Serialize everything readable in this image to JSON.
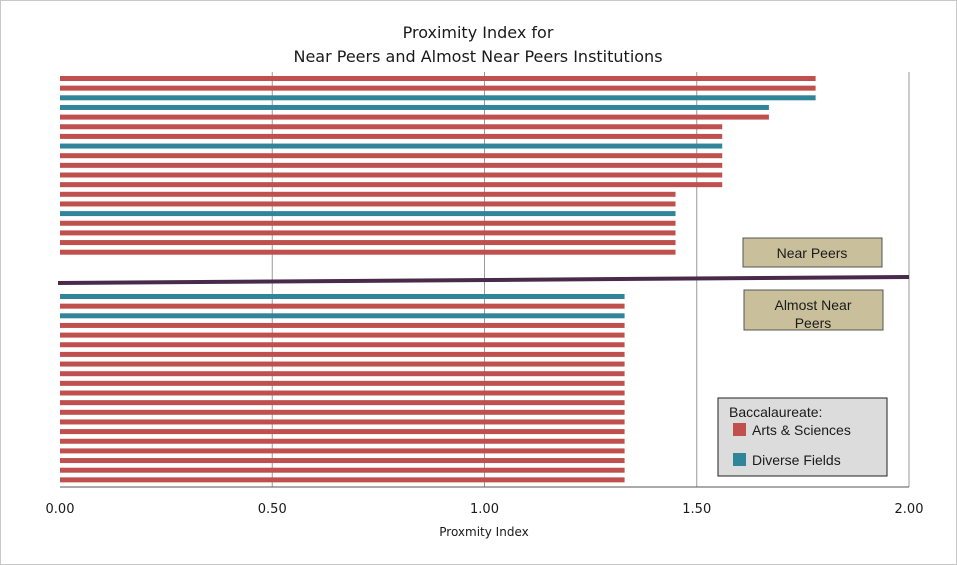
{
  "chart_data": {
    "type": "bar",
    "orientation": "horizontal",
    "title_lines": [
      "Proximity Index for",
      "Near Peers and Almost Near Peers Institutions"
    ],
    "xlabel": "Proxmity Index",
    "ylabel": "",
    "xlim": [
      0,
      2
    ],
    "xticks": [
      "0.00",
      "0.50",
      "1.00",
      "1.50",
      "2.00"
    ],
    "xtick_values": [
      0,
      0.5,
      1,
      1.5,
      2
    ],
    "grid": "vertical",
    "colors": {
      "arts": "#c0504d",
      "diverse": "#31859b",
      "divider": "#4a2a4a",
      "annotation_fill": "#c9bf9a",
      "legend_fill": "#dcdcdc"
    },
    "groups": [
      {
        "label": "Near Peers",
        "bars": [
          {
            "value": 1.78,
            "type": "arts"
          },
          {
            "value": 1.78,
            "type": "arts"
          },
          {
            "value": 1.78,
            "type": "diverse"
          },
          {
            "value": 1.67,
            "type": "diverse"
          },
          {
            "value": 1.67,
            "type": "arts"
          },
          {
            "value": 1.56,
            "type": "arts"
          },
          {
            "value": 1.56,
            "type": "arts"
          },
          {
            "value": 1.56,
            "type": "diverse"
          },
          {
            "value": 1.56,
            "type": "arts"
          },
          {
            "value": 1.56,
            "type": "arts"
          },
          {
            "value": 1.56,
            "type": "arts"
          },
          {
            "value": 1.56,
            "type": "arts"
          },
          {
            "value": 1.45,
            "type": "arts"
          },
          {
            "value": 1.45,
            "type": "arts"
          },
          {
            "value": 1.45,
            "type": "diverse"
          },
          {
            "value": 1.45,
            "type": "arts"
          },
          {
            "value": 1.45,
            "type": "arts"
          },
          {
            "value": 1.45,
            "type": "arts"
          },
          {
            "value": 1.45,
            "type": "arts"
          }
        ]
      },
      {
        "label": "Almost Near Peers",
        "bars": [
          {
            "value": 1.33,
            "type": "diverse"
          },
          {
            "value": 1.33,
            "type": "arts"
          },
          {
            "value": 1.33,
            "type": "diverse"
          },
          {
            "value": 1.33,
            "type": "arts"
          },
          {
            "value": 1.33,
            "type": "arts"
          },
          {
            "value": 1.33,
            "type": "arts"
          },
          {
            "value": 1.33,
            "type": "arts"
          },
          {
            "value": 1.33,
            "type": "arts"
          },
          {
            "value": 1.33,
            "type": "arts"
          },
          {
            "value": 1.33,
            "type": "arts"
          },
          {
            "value": 1.33,
            "type": "arts"
          },
          {
            "value": 1.33,
            "type": "arts"
          },
          {
            "value": 1.33,
            "type": "arts"
          },
          {
            "value": 1.33,
            "type": "arts"
          },
          {
            "value": 1.33,
            "type": "arts"
          },
          {
            "value": 1.33,
            "type": "arts"
          },
          {
            "value": 1.33,
            "type": "arts"
          },
          {
            "value": 1.33,
            "type": "arts"
          },
          {
            "value": 1.33,
            "type": "arts"
          },
          {
            "value": 1.33,
            "type": "arts"
          }
        ]
      }
    ],
    "annotations": {
      "near_peers": "Near Peers",
      "almost_near_peers": [
        "Almost Near",
        "Peers"
      ]
    },
    "legend": {
      "title": "Baccalaureate:",
      "entries": [
        {
          "type": "arts",
          "label": "Arts & Sciences"
        },
        {
          "type": "diverse",
          "label": "Diverse Fields"
        }
      ],
      "position": "bottom-right"
    }
  }
}
